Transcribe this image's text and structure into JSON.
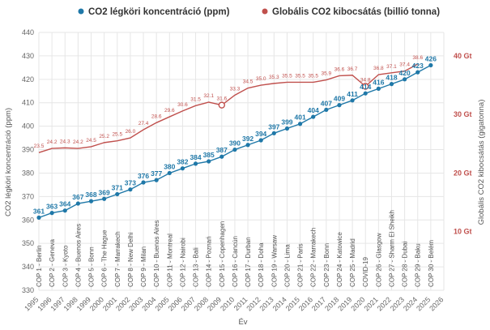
{
  "chart_data": {
    "type": "line",
    "title": "",
    "xlabel": "Év",
    "ylabel": "CO2 légköri koncentráció (ppm)",
    "y2label": "Globális CO2 kibocsátás (gigatonna)",
    "legend_position": "top",
    "ylim": [
      330,
      440
    ],
    "y_ticks": [
      "330",
      "340",
      "350",
      "360",
      "370",
      "380",
      "390",
      "400",
      "410",
      "420",
      "430",
      "440"
    ],
    "y2lim": [
      0,
      44
    ],
    "y2_ticks": [
      "10 Gt",
      "20 Gt",
      "30 Gt",
      "40 Gt"
    ],
    "x_ticks": [
      "1995",
      "1996",
      "1997",
      "1998",
      "1999",
      "2000",
      "2001",
      "2002",
      "2003",
      "2004",
      "2005",
      "2006",
      "2007",
      "2008",
      "2009",
      "2010",
      "2011",
      "2012",
      "2013",
      "2014",
      "2015",
      "2016",
      "2017",
      "2018",
      "2019",
      "2020",
      "2021",
      "2022",
      "2023",
      "2024",
      "2025",
      "2026"
    ],
    "grid": true,
    "colors": {
      "co2_ppm": "#1f78a8",
      "emissions": "#c0504d",
      "grid": "#e6e6e6"
    },
    "series": [
      {
        "name": "CO2 légköri koncentráció (ppm)",
        "axis": "left",
        "x": [
          1995,
          1996,
          1997,
          1998,
          1999,
          2000,
          2001,
          2002,
          2003,
          2004,
          2005,
          2006,
          2007,
          2008,
          2009,
          2010,
          2011,
          2012,
          2013,
          2014,
          2015,
          2016,
          2017,
          2018,
          2019,
          2020,
          2021,
          2022,
          2023,
          2024,
          2025
        ],
        "values": [
          361,
          363,
          364,
          367,
          368,
          369,
          371,
          373,
          376,
          377,
          380,
          382,
          384,
          385,
          387,
          390,
          392,
          394,
          397,
          399,
          401,
          404,
          407,
          409,
          411,
          414,
          416,
          418,
          420,
          423,
          426
        ],
        "labels": [
          "361",
          "363",
          "364",
          "367",
          "368",
          "369",
          "371",
          "373",
          "376",
          "377",
          "380",
          "382",
          "384",
          "385",
          "387",
          "390",
          "392",
          "394",
          "397",
          "399",
          "401",
          "404",
          "407",
          "409",
          "411",
          "414",
          "416",
          "418",
          "420",
          "423",
          "426"
        ]
      },
      {
        "name": "Globális CO2 kibocsátás (billió tonna)",
        "axis": "right",
        "x": [
          1995,
          1996,
          1997,
          1998,
          1999,
          2000,
          2001,
          2002,
          2003,
          2004,
          2005,
          2006,
          2007,
          2008,
          2009,
          2010,
          2011,
          2012,
          2013,
          2014,
          2015,
          2016,
          2017,
          2018,
          2019,
          2020,
          2021,
          2022,
          2023,
          2024
        ],
        "values": [
          23.5,
          24.2,
          24.3,
          24.2,
          24.5,
          25.2,
          25.5,
          26.0,
          27.4,
          28.6,
          29.6,
          30.6,
          31.5,
          32.1,
          31.6,
          33.3,
          34.5,
          35.0,
          35.3,
          35.5,
          35.5,
          35.5,
          35.9,
          36.6,
          36.7,
          34.8,
          36.8,
          37.1,
          37.4,
          38.6
        ],
        "labels": [
          "23.5",
          "24.2",
          "24.3",
          "24.2",
          "24.5",
          "25.2",
          "25.5",
          "26.0",
          "27.4",
          "28.6",
          "29.6",
          "30.6",
          "31.5",
          "32.1",
          "31.6",
          "33.3",
          "34.5",
          "35.0",
          "35.3",
          "35.5",
          "35.5",
          "35.5",
          "35.9",
          "36.6",
          "36.7",
          "34.8",
          "36.8",
          "37.1",
          "37.4",
          "38.6"
        ]
      }
    ],
    "annotations": [
      "COP 1 - Berlin",
      "COP 2 - Geneva",
      "COP 3 - Kyoto",
      "COP 4 - Buenos Aires",
      "COP 5 - Bonn",
      "COP 6 - The Hague",
      "COP 7 - Marrakech",
      "COP 8 - New Delhi",
      "COP 9 - Milan",
      "COP 10 - Buenos Aires",
      "COP 11 - Montreal",
      "COP 12 - Nairobi",
      "COP 13 - Bali",
      "COP 14 - Poznań",
      "COP 15 - Copenhagen",
      "COP 16 - Cancún",
      "COP 17 - Durban",
      "COP 18 - Doha",
      "COP 19 - Warsaw",
      "COP 20 - Lima",
      "COP 21 - Paris",
      "COP 22 - Marrakech",
      "COP 23 - Bonn",
      "COP 24 - Katowice",
      "COP 25 - Madrid",
      "COVID-19",
      "COP 26 - Glasgow",
      "COP 27 - Sharm El Sheikh",
      "COP 28 - Dubai",
      "COP 29 - Baku",
      "COP 30 - Belém"
    ]
  }
}
